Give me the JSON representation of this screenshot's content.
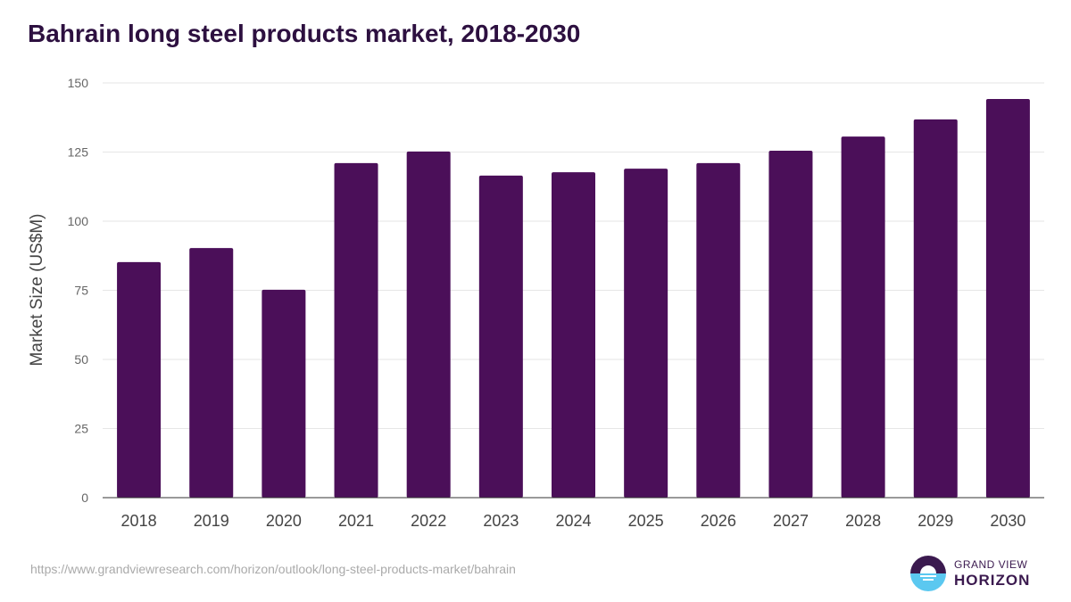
{
  "title": "Bahrain long steel products market, 2018-2030",
  "source": "https://www.grandviewresearch.com/horizon/outlook/long-steel-products-market/bahrain",
  "logo": {
    "line1": "GRAND VIEW",
    "line2": "HORIZON"
  },
  "colors": {
    "bar": "#4b0f59",
    "grid": "#e6e6e6",
    "title": "#2d1040"
  },
  "chart_data": {
    "type": "bar",
    "title": "Bahrain long steel products market, 2018-2030",
    "xlabel": "",
    "ylabel": "Market Size (US$M)",
    "ylim": [
      0,
      150
    ],
    "yticks": [
      0,
      25,
      50,
      75,
      100,
      125,
      150
    ],
    "grid": true,
    "categories": [
      "2018",
      "2019",
      "2020",
      "2021",
      "2022",
      "2023",
      "2024",
      "2025",
      "2026",
      "2027",
      "2028",
      "2029",
      "2030"
    ],
    "values": [
      85.2,
      90.3,
      75.2,
      121.0,
      125.2,
      116.5,
      117.7,
      119.0,
      121.0,
      125.5,
      130.6,
      136.8,
      144.2
    ]
  }
}
